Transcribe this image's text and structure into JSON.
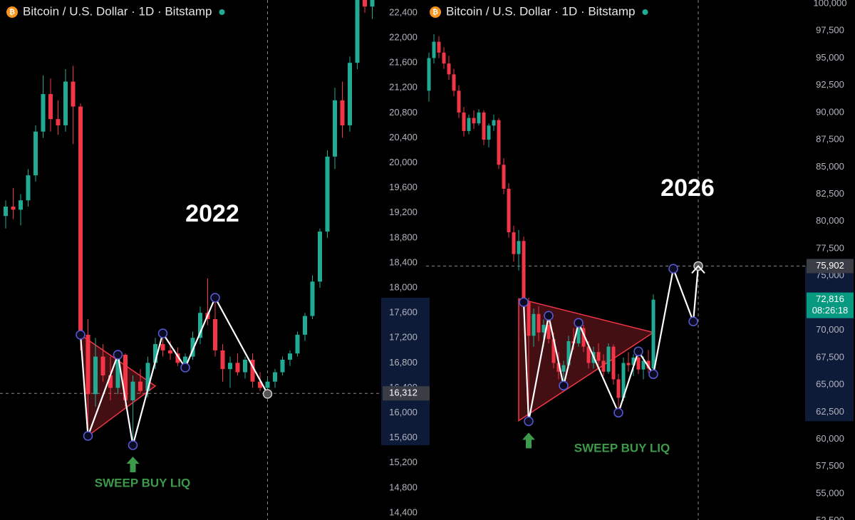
{
  "chart_data": [
    {
      "type": "candlestick",
      "title": "Bitcoin / U.S. Dollar · 1D · Bitstamp",
      "up_color": "#22ab94",
      "down_color": "#f23645",
      "open": [
        19150,
        19300,
        19250,
        19400,
        19800,
        20500,
        21100,
        20700,
        20600,
        21300,
        20900,
        17250,
        16300,
        16900,
        16600,
        16400,
        16930,
        16200,
        16500,
        16350,
        16800,
        17100,
        17000,
        16950,
        16800,
        16900,
        17200,
        17600,
        17500,
        17000,
        16700,
        16800,
        16650,
        16850,
        16500,
        16400,
        16500,
        16650,
        16850,
        16950,
        17250,
        17550,
        18100,
        18900,
        20100,
        21000,
        20600,
        21600,
        22700,
        22500
      ],
      "high": [
        19400,
        19600,
        19500,
        19900,
        20600,
        21400,
        21350,
        21000,
        21500,
        21550,
        20950,
        17500,
        17200,
        17100,
        16900,
        16950,
        16950,
        16600,
        16700,
        16900,
        17200,
        17280,
        17150,
        17050,
        16950,
        17300,
        17700,
        18150,
        17850,
        17100,
        16900,
        16950,
        16900,
        16950,
        16650,
        16550,
        16700,
        16900,
        17000,
        17300,
        17600,
        18200,
        18950,
        20200,
        21200,
        21300,
        21700,
        22900,
        23000,
        22800
      ],
      "low": [
        18950,
        19100,
        19000,
        19300,
        19700,
        20400,
        20500,
        20450,
        20500,
        20300,
        17000,
        15630,
        16100,
        16500,
        16200,
        16300,
        16100,
        15480,
        16300,
        16250,
        16700,
        16900,
        16850,
        16750,
        16720,
        16850,
        17100,
        17400,
        16900,
        16500,
        16400,
        16600,
        16550,
        16400,
        16350,
        16300,
        16400,
        16600,
        16750,
        16900,
        17150,
        17500,
        18000,
        18800,
        19900,
        20400,
        20500,
        21500,
        22400,
        22300
      ],
      "close": [
        19300,
        19250,
        19400,
        19800,
        20500,
        21100,
        20700,
        20600,
        21300,
        20900,
        17250,
        16300,
        16900,
        16600,
        16400,
        16930,
        16200,
        16500,
        16350,
        16800,
        17100,
        17000,
        16950,
        16800,
        16900,
        17200,
        17600,
        17500,
        17000,
        16700,
        16800,
        16650,
        16850,
        16500,
        16400,
        16500,
        16650,
        16850,
        16950,
        17250,
        17550,
        18100,
        18900,
        20100,
        21000,
        20600,
        21600,
        22700,
        22500,
        22650
      ],
      "ylim": [
        14286,
        22605
      ],
      "yticks": [
        {
          "value": 22400,
          "label": "22,400"
        },
        {
          "value": 22000,
          "label": "22,000"
        },
        {
          "value": 21600,
          "label": "21,600"
        },
        {
          "value": 21200,
          "label": "21,200"
        },
        {
          "value": 20800,
          "label": "20,800"
        },
        {
          "value": 20400,
          "label": "20,400"
        },
        {
          "value": 20000,
          "label": "20,000"
        },
        {
          "value": 19600,
          "label": "19,600"
        },
        {
          "value": 19200,
          "label": "19,200"
        },
        {
          "value": 18800,
          "label": "18,800"
        },
        {
          "value": 18400,
          "label": "18,400"
        },
        {
          "value": 18000,
          "label": "18,000"
        },
        {
          "value": 17600,
          "label": "17,600"
        },
        {
          "value": 17200,
          "label": "17,200"
        },
        {
          "value": 16800,
          "label": "16,800"
        },
        {
          "value": 16400,
          "label": "16,400"
        },
        {
          "value": 16000,
          "label": "16,000"
        },
        {
          "value": 15600,
          "label": "15,600"
        },
        {
          "value": 15200,
          "label": "15,200"
        },
        {
          "value": 14800,
          "label": "14,800"
        },
        {
          "value": 14400,
          "label": "14,400"
        }
      ],
      "pattern": {
        "x": [
          10,
          11,
          15,
          17,
          21,
          24,
          28,
          35
        ],
        "values": [
          17249,
          15631,
          16930,
          15483,
          17272,
          16725,
          17842,
          16303
        ],
        "color": "#ffffff"
      },
      "triangle": {
        "x": [
          10,
          11,
          20
        ],
        "values": [
          17249,
          15631,
          16430
        ],
        "color": "#f23645"
      },
      "price_line": {
        "value": 16312,
        "label": "16,312"
      },
      "crosshair_x": 35,
      "annotation": "2022",
      "callout": "SWEEP BUY LIQ",
      "callout_color": "#3d9a4a"
    },
    {
      "type": "candlestick",
      "title": "Bitcoin / U.S. Dollar · 1D · Bitstamp",
      "up_color": "#22ab94",
      "down_color": "#f23645",
      "open": [
        92000,
        95000,
        96500,
        95500,
        94500,
        93500,
        92000,
        90000,
        88300,
        89500,
        89000,
        90000,
        87500,
        88800,
        89300,
        85200,
        83000,
        79000,
        77000,
        78200,
        72579,
        69500,
        71500,
        69800,
        70500,
        69200,
        67000,
        66200,
        66800,
        69000,
        68800,
        70200,
        68500,
        67000,
        68000,
        67200,
        66200,
        68500,
        65500,
        63800,
        67000,
        66800,
        67500,
        66400,
        67200,
        66500
      ],
      "high": [
        95500,
        97200,
        97000,
        96000,
        95200,
        94000,
        92500,
        90500,
        89800,
        90200,
        90300,
        90200,
        89000,
        89800,
        89500,
        85800,
        83500,
        79600,
        79200,
        78600,
        73000,
        72000,
        72200,
        71000,
        71335,
        69800,
        68000,
        67200,
        69500,
        70200,
        70681,
        70500,
        69000,
        68500,
        68800,
        67800,
        68800,
        68700,
        66000,
        67500,
        68000,
        67800,
        68063,
        67600,
        68200,
        73300
      ],
      "low": [
        91000,
        94500,
        95000,
        94000,
        93000,
        91500,
        89500,
        87800,
        88000,
        88500,
        88800,
        87000,
        86800,
        88300,
        84800,
        82500,
        78500,
        76300,
        75500,
        72400,
        61649,
        68500,
        69000,
        68500,
        68800,
        66500,
        65500,
        64921,
        66500,
        68200,
        68500,
        68000,
        66500,
        66500,
        66800,
        65800,
        66000,
        65000,
        62435,
        63500,
        66200,
        65800,
        66000,
        65500,
        66100,
        65969
      ],
      "close": [
        95000,
        96500,
        95500,
        94500,
        93500,
        92000,
        90000,
        88300,
        89500,
        89000,
        90000,
        87500,
        88800,
        89300,
        85200,
        83000,
        79000,
        77000,
        78200,
        72579,
        69500,
        71500,
        69800,
        70500,
        69200,
        67000,
        66200,
        66800,
        69000,
        68800,
        70200,
        68500,
        67000,
        68000,
        67200,
        66200,
        68500,
        65500,
        63800,
        67000,
        66800,
        67500,
        66400,
        67200,
        66500,
        72816
      ],
      "ylim": [
        52580,
        100330
      ],
      "yticks": [
        {
          "value": 100000,
          "label": "100,000"
        },
        {
          "value": 97500,
          "label": "97,500"
        },
        {
          "value": 95000,
          "label": "95,000"
        },
        {
          "value": 92500,
          "label": "92,500"
        },
        {
          "value": 90000,
          "label": "90,000"
        },
        {
          "value": 87500,
          "label": "87,500"
        },
        {
          "value": 85000,
          "label": "85,000"
        },
        {
          "value": 82500,
          "label": "82,500"
        },
        {
          "value": 80000,
          "label": "80,000"
        },
        {
          "value": 77500,
          "label": "77,500"
        },
        {
          "value": 75000,
          "label": "75,000"
        },
        {
          "value": 72500,
          "label": "72,500"
        },
        {
          "value": 70000,
          "label": "70,000"
        },
        {
          "value": 67500,
          "label": "67,500"
        },
        {
          "value": 65000,
          "label": "65,000"
        },
        {
          "value": 62500,
          "label": "62,500"
        },
        {
          "value": 60000,
          "label": "60,000"
        },
        {
          "value": 57500,
          "label": "57,500"
        },
        {
          "value": 55000,
          "label": "55,000"
        },
        {
          "value": 52500,
          "label": "52,500"
        }
      ],
      "pattern": {
        "x": [
          19,
          20,
          24,
          27,
          30,
          38,
          42,
          45,
          49,
          53,
          54
        ],
        "values": [
          72579,
          61649,
          71335,
          64921,
          70681,
          62435,
          68063,
          65969,
          75654,
          70812,
          75902
        ],
        "color": "#ffffff"
      },
      "triangle": {
        "x": [
          18,
          18,
          45
        ],
        "values": [
          72900,
          61700,
          69800
        ],
        "color": "#f23645"
      },
      "price_line": {
        "value": 75902,
        "label": "75,902"
      },
      "last_price": {
        "value": 72816,
        "label": "72,816"
      },
      "countdown": "08:26:18",
      "crosshair_x": 54,
      "annotation": "2026",
      "callout": "SWEEP BUY LIQ",
      "callout_color": "#3d9a4a"
    }
  ]
}
